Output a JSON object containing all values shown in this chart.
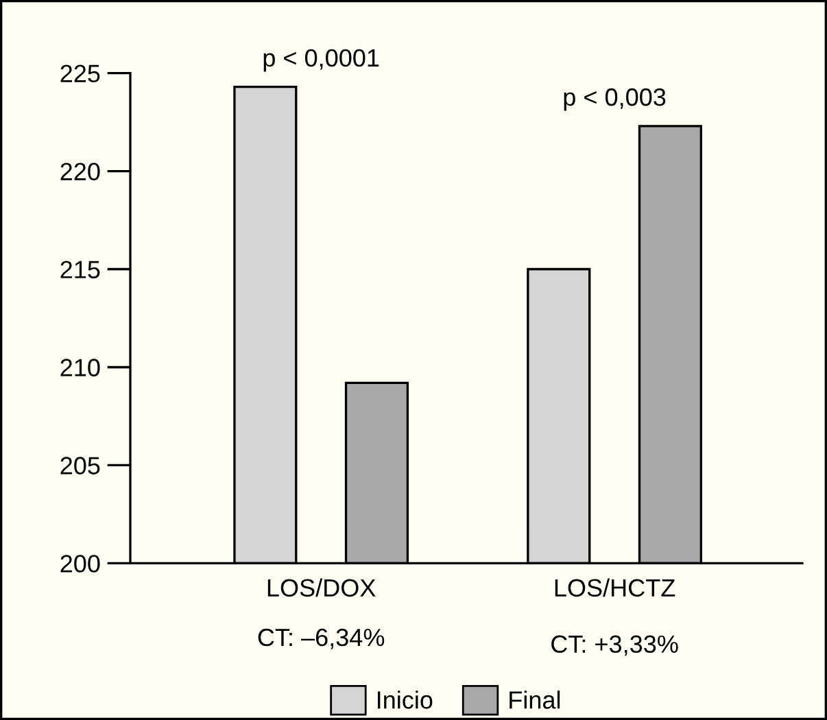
{
  "chart_data": {
    "type": "bar",
    "categories": [
      "LOS/DOX",
      "LOS/HCTZ"
    ],
    "series": [
      {
        "name": "Inicio",
        "color": "#d4d4d4",
        "values": [
          224.3,
          215.0
        ]
      },
      {
        "name": "Final",
        "color": "#a9a9a9",
        "values": [
          209.2,
          222.3
        ]
      }
    ],
    "ylim": [
      200,
      225
    ],
    "yticks": [
      200,
      205,
      210,
      215,
      220,
      225
    ],
    "grid": false,
    "legend": "bottom",
    "annotations": [
      "p < 0,0001",
      "p < 0,003",
      "CT: –6,34%",
      "CT: +3,33%"
    ]
  }
}
